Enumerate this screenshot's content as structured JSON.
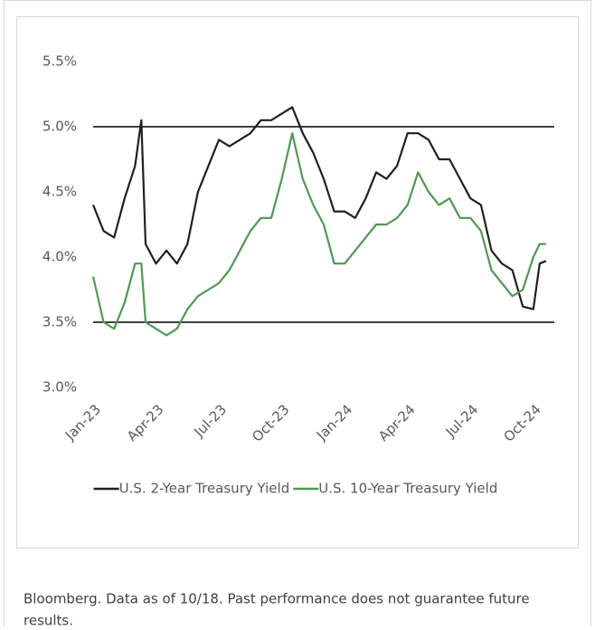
{
  "chart_data": {
    "type": "line",
    "x": [
      0,
      0.5,
      1,
      1.5,
      2,
      2.3,
      2.5,
      3,
      3.5,
      4,
      4.5,
      5,
      5.5,
      6,
      6.5,
      7,
      7.5,
      8,
      8.5,
      9,
      9.5,
      10,
      10.5,
      11,
      11.5,
      12,
      12.5,
      13,
      13.5,
      14,
      14.5,
      15,
      15.5,
      16,
      16.5,
      17,
      17.5,
      18,
      18.5,
      19,
      19.5,
      20,
      20.5,
      21,
      21.3,
      21.6
    ],
    "series": [
      {
        "name": "U.S. 2-Year Treasury Yield",
        "color": "#231f20",
        "values": [
          4.4,
          4.2,
          4.15,
          4.45,
          4.7,
          5.05,
          4.1,
          3.95,
          4.05,
          3.95,
          4.1,
          4.5,
          4.7,
          4.9,
          4.85,
          4.9,
          4.95,
          5.05,
          5.05,
          5.1,
          5.15,
          4.95,
          4.8,
          4.6,
          4.35,
          4.35,
          4.3,
          4.45,
          4.65,
          4.6,
          4.7,
          4.95,
          4.95,
          4.9,
          4.75,
          4.75,
          4.6,
          4.45,
          4.4,
          4.05,
          3.95,
          3.9,
          3.62,
          3.6,
          3.95,
          3.97
        ]
      },
      {
        "name": "U.S. 10-Year Treasury Yield",
        "color": "#4e9a4f",
        "values": [
          3.85,
          3.5,
          3.45,
          3.65,
          3.95,
          3.95,
          3.5,
          3.45,
          3.4,
          3.45,
          3.6,
          3.7,
          3.75,
          3.8,
          3.9,
          4.05,
          4.2,
          4.3,
          4.3,
          4.6,
          4.95,
          4.6,
          4.4,
          4.25,
          3.95,
          3.95,
          4.05,
          4.15,
          4.25,
          4.25,
          4.3,
          4.4,
          4.65,
          4.5,
          4.4,
          4.45,
          4.3,
          4.3,
          4.2,
          3.9,
          3.8,
          3.7,
          3.75,
          4.0,
          4.1,
          4.1
        ]
      }
    ],
    "xlim": [
      0,
      22
    ],
    "xticks": [
      {
        "value": 0,
        "label": "Jan-23"
      },
      {
        "value": 3,
        "label": "Apr-23"
      },
      {
        "value": 6,
        "label": "Jul-23"
      },
      {
        "value": 9,
        "label": "Oct-23"
      },
      {
        "value": 12,
        "label": "Jan-24"
      },
      {
        "value": 15,
        "label": "Apr-24"
      },
      {
        "value": 18,
        "label": "Jul-24"
      },
      {
        "value": 21,
        "label": "Oct-24"
      }
    ],
    "ylim": [
      3.0,
      5.5
    ],
    "yticks": [
      {
        "value": 3.0,
        "label": "3.0%"
      },
      {
        "value": 3.5,
        "label": "3.5%"
      },
      {
        "value": 4.0,
        "label": "4.0%"
      },
      {
        "value": 4.5,
        "label": "4.5%"
      },
      {
        "value": 5.0,
        "label": "5.0%"
      },
      {
        "value": 5.5,
        "label": "5.5%"
      }
    ],
    "reference_lines": [
      5.0,
      3.5
    ],
    "grid": false,
    "legend": "bottom",
    "source": "Bloomberg. Data as of 10/18. Past performance does not guarantee future results."
  }
}
